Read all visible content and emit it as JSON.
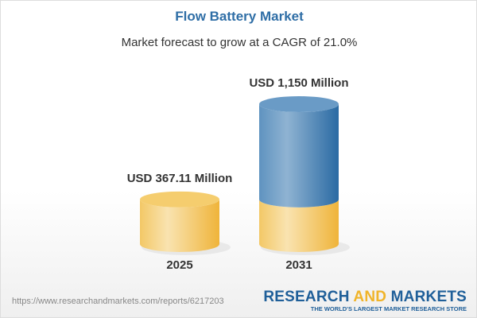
{
  "header": {
    "title": "Flow Battery Market",
    "subtitle": "Market forecast to grow at a CAGR of 21.0%"
  },
  "chart_data": {
    "type": "bar",
    "style": "3d-cylinder",
    "categories": [
      "2025",
      "2031"
    ],
    "values": [
      367.11,
      1150
    ],
    "data_labels": [
      "USD 367.11 Million",
      "USD 1,150 Million"
    ],
    "unit": "USD Million",
    "cagr": "21.0%",
    "colors": {
      "base": "#f2c04f",
      "growth": "#2f6ea6"
    }
  },
  "footer": {
    "url": "https://www.researchandmarkets.com/reports/6217203",
    "logo": {
      "word1": "RESEARCH",
      "word2": "AND",
      "word3": "MARKETS",
      "tagline": "THE WORLD'S LARGEST MARKET RESEARCH STORE"
    }
  }
}
